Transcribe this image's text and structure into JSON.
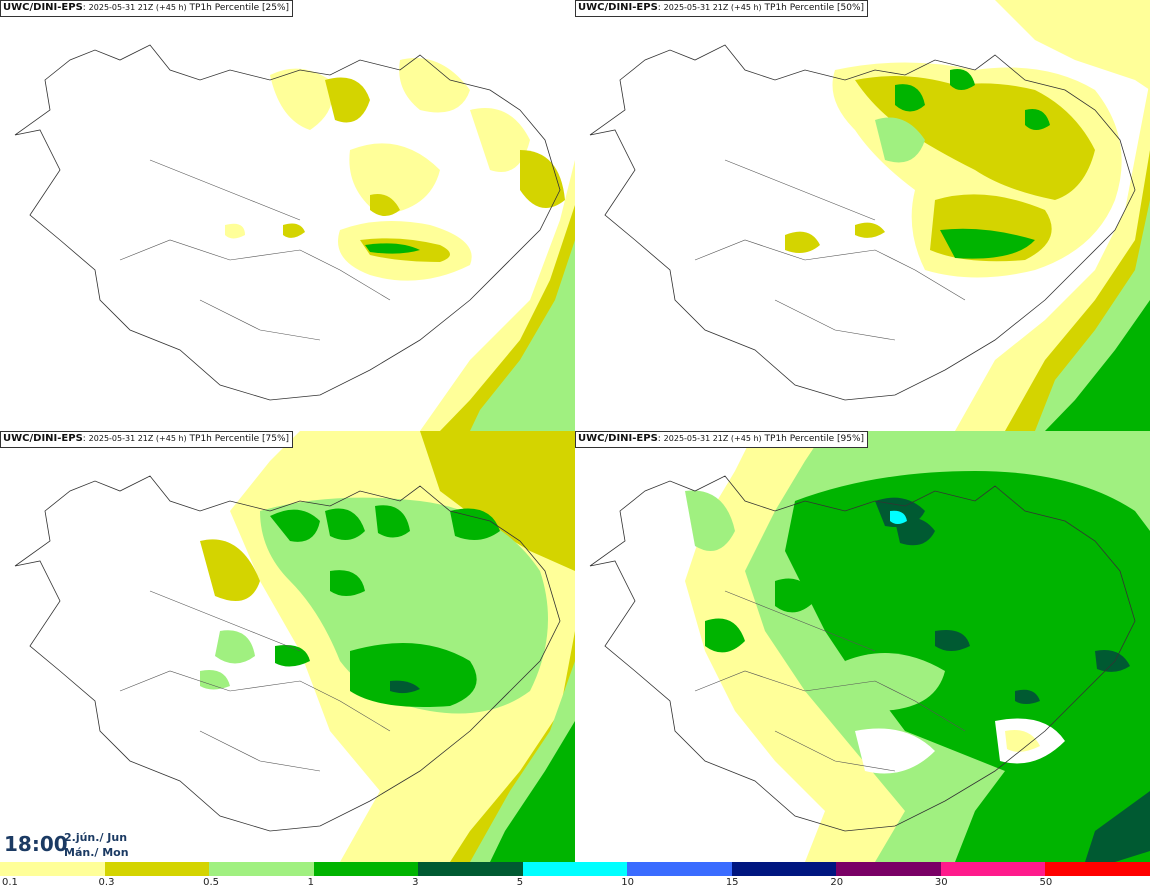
{
  "panels": [
    {
      "model": "UWC/DINI-EPS",
      "run": "2025-05-31 21Z (+45 h)",
      "product": "TP1h Percentile [25%]",
      "percentile": 25
    },
    {
      "model": "UWC/DINI-EPS",
      "run": "2025-05-31 21Z (+45 h)",
      "product": "TP1h Percentile [50%]",
      "percentile": 50
    },
    {
      "model": "UWC/DINI-EPS",
      "run": "2025-05-31 21Z (+45 h)",
      "product": "TP1h Percentile [75%]",
      "percentile": 75
    },
    {
      "model": "UWC/DINI-EPS",
      "run": "2025-05-31 21Z (+45 h)",
      "product": "TP1h Percentile [95%]",
      "percentile": 95
    }
  ],
  "valid_time": {
    "time": "18:00",
    "date": "2.jún./ Jun",
    "weekday": "Mán./ Mon"
  },
  "legend": {
    "levels": [
      "0.1",
      "0.3",
      "0.5",
      "1",
      "3",
      "5",
      "10",
      "15",
      "20",
      "30",
      "50"
    ],
    "colors": [
      "#ffff99",
      "#d4d400",
      "#a0f080",
      "#00b400",
      "#005a32",
      "#00ffff",
      "#3a6cff",
      "#001680",
      "#7a0066",
      "#ff1a8c",
      "#ff0000"
    ]
  }
}
